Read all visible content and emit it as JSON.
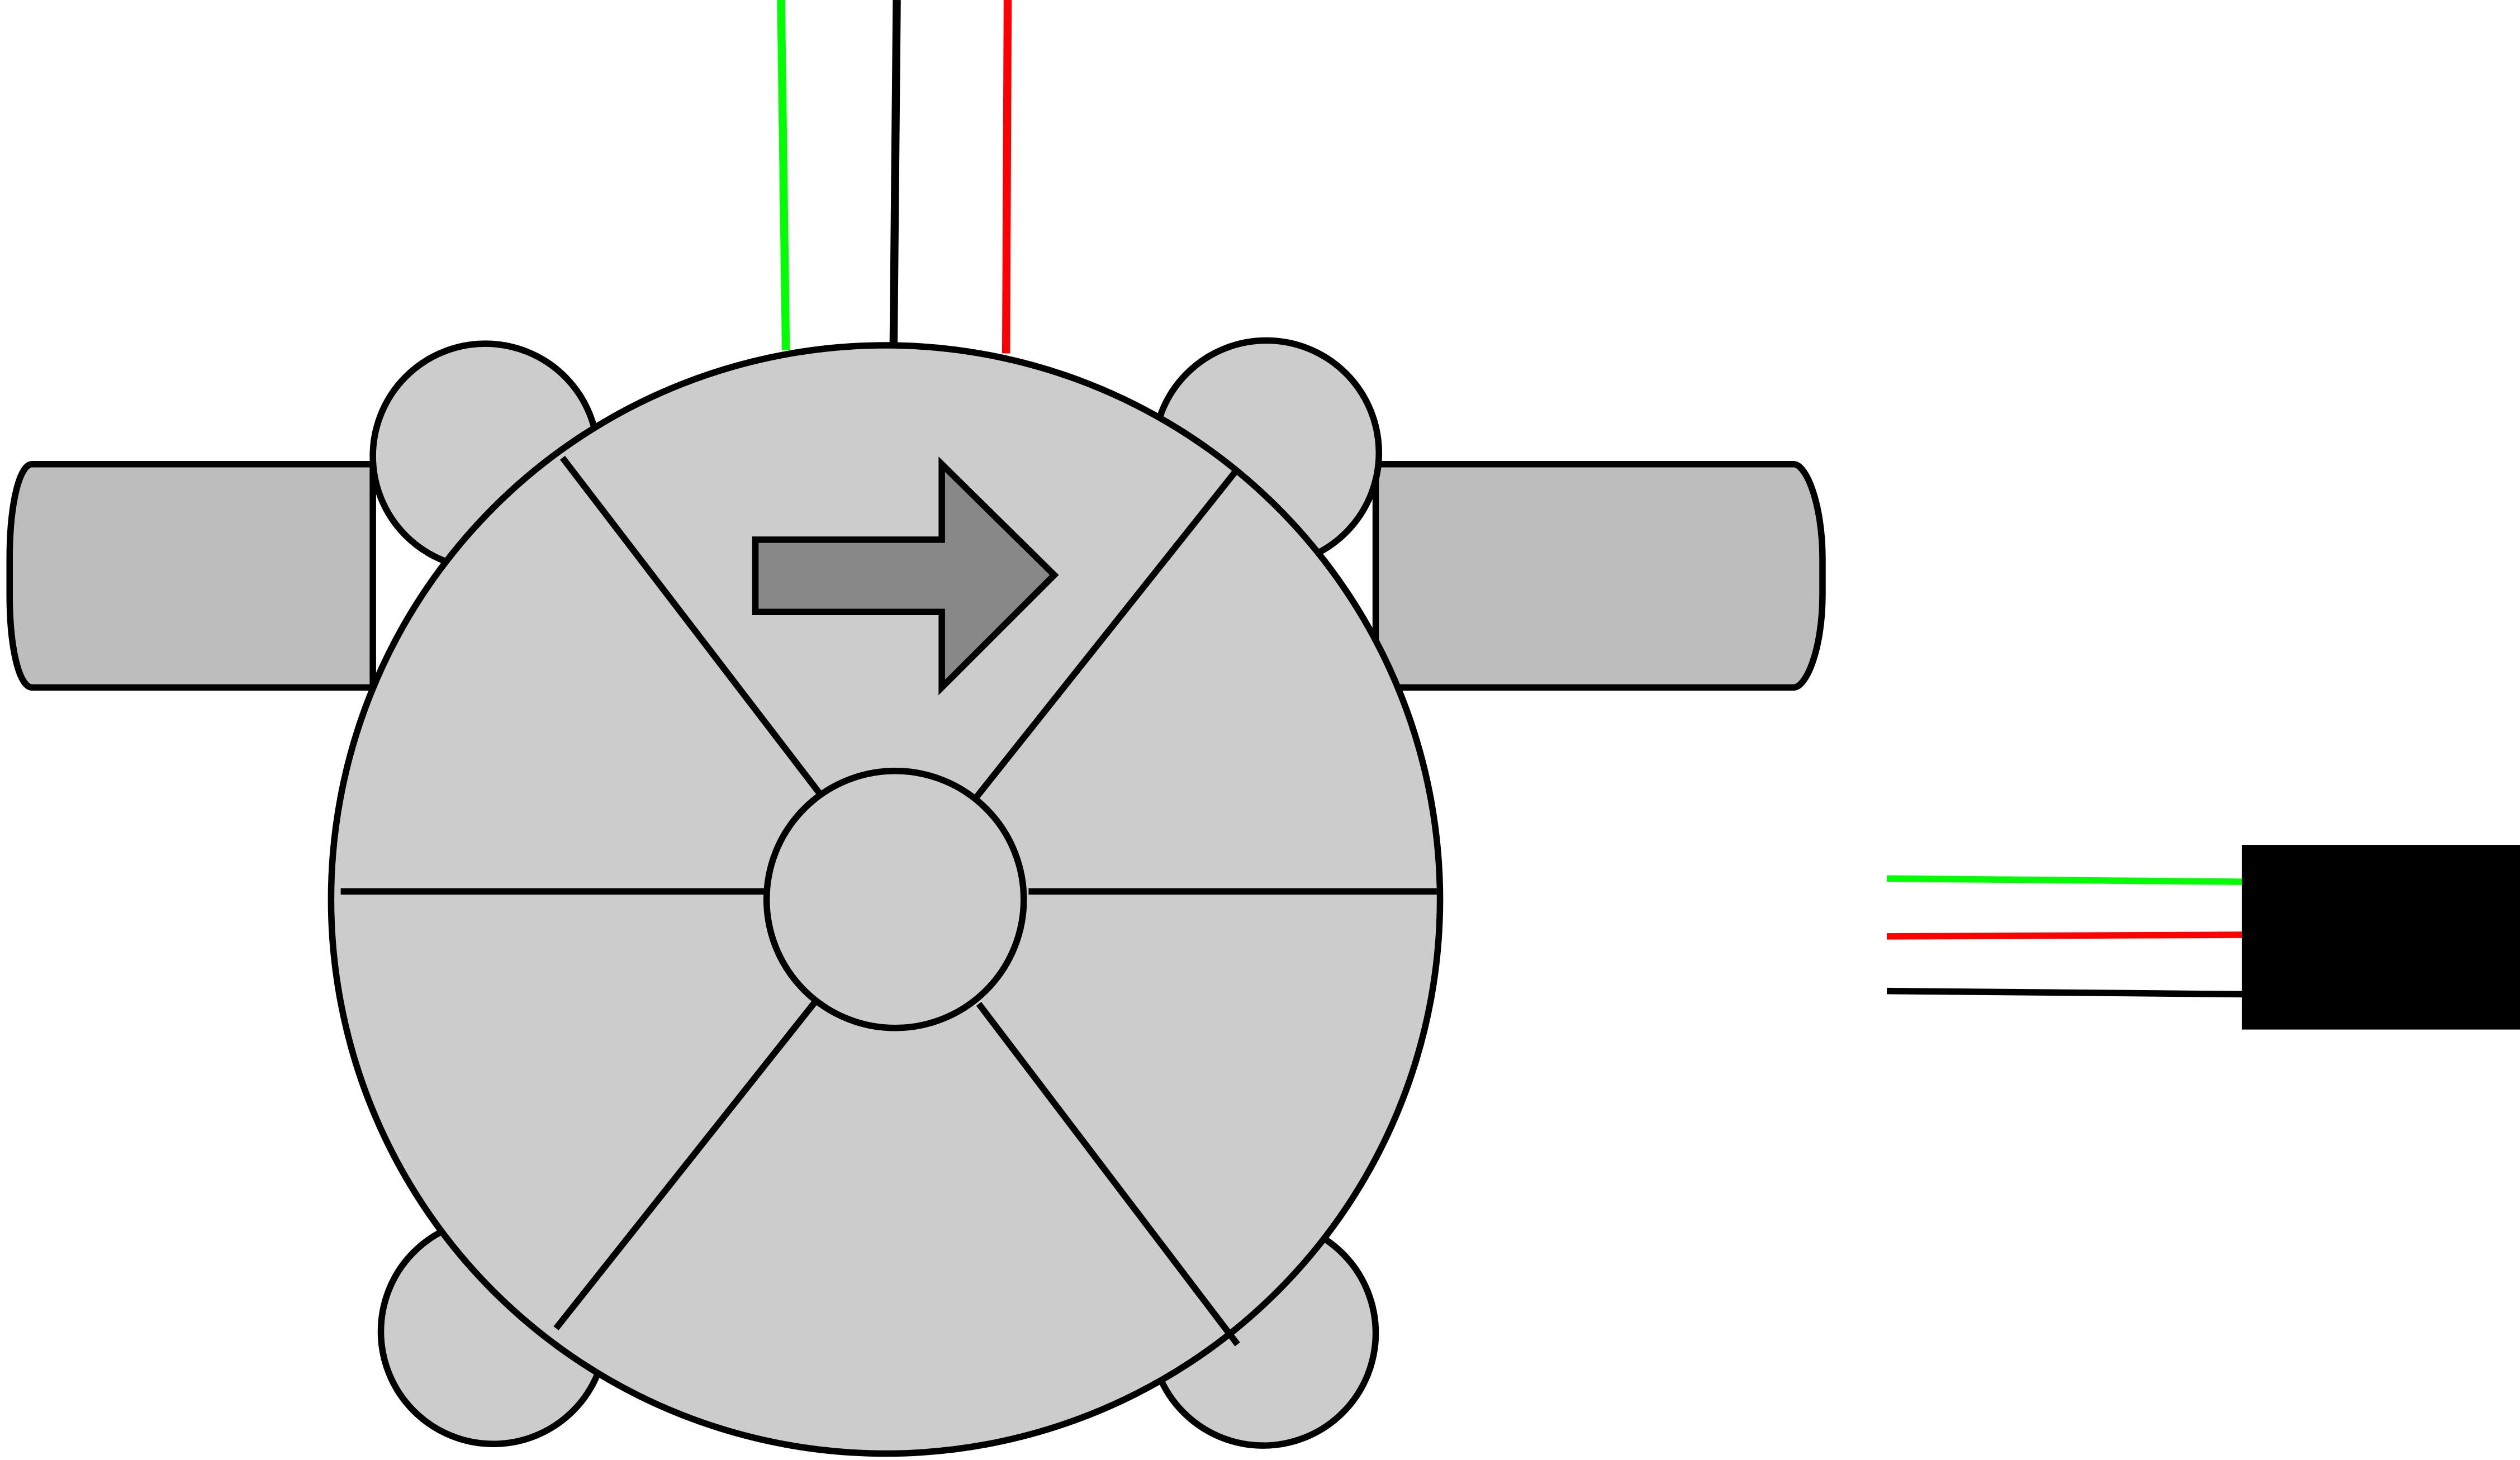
{
  "diagram": {
    "type": "flow-sensor-illustration",
    "description_visible_text": [],
    "colors": {
      "background": "#ffffff",
      "outline": "#000000",
      "body_fill": "#cccccc",
      "pipe_fill": "#bdbdbd",
      "flow_arrow_fill": "#888888",
      "connector_fill": "#000000",
      "wire_signal": "#00ff00",
      "wire_ground": "#000000",
      "wire_power": "#ff0000"
    },
    "components": {
      "sensor_body": {
        "shape": "circle",
        "rotor_blades": 6
      },
      "mounting_lugs": {
        "count": 4
      },
      "inlet_pipe": {
        "side": "left"
      },
      "outlet_pipe": {
        "side": "right"
      },
      "flow_arrow": {
        "direction": "right"
      },
      "top_wires": {
        "order": [
          "signal",
          "ground",
          "power"
        ]
      },
      "cable_connector": {
        "wire_order": [
          "signal",
          "power",
          "ground"
        ]
      }
    }
  }
}
